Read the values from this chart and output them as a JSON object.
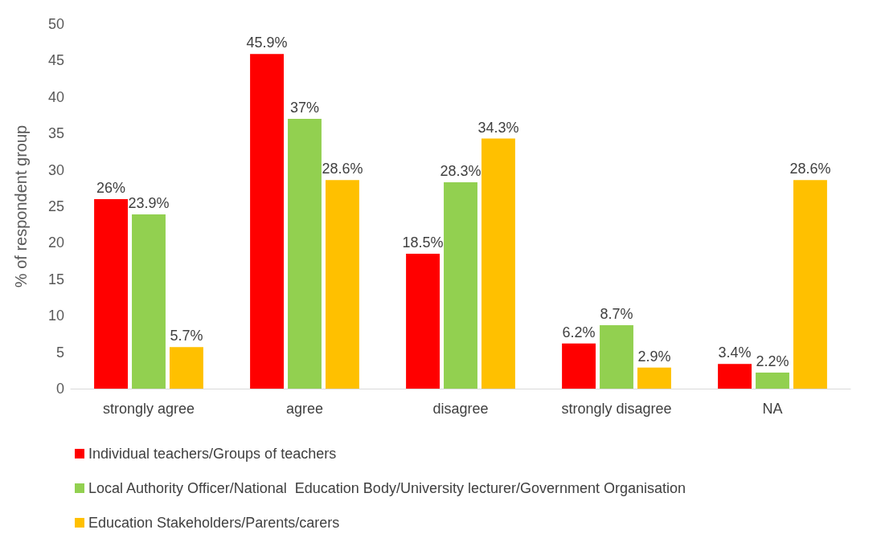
{
  "chart_data": {
    "type": "bar",
    "ylabel": "% of respondent group",
    "categories": [
      "strongly agree",
      "agree",
      "disagree",
      "strongly disagree",
      "NA"
    ],
    "series": [
      {
        "name": "Individual teachers/Groups of teachers",
        "color": "#ff0000",
        "values": [
          26,
          45.9,
          18.5,
          6.2,
          3.4
        ],
        "value_labels": [
          "26%",
          "45.9%",
          "18.5%",
          "6.2%",
          "3.4%"
        ]
      },
      {
        "name": "Local Authority Officer/National  Education Body/University lecturer/Government Organisation",
        "color": "#92d050",
        "values": [
          23.9,
          37,
          28.3,
          8.7,
          2.2
        ],
        "value_labels": [
          "23.9%",
          "37%",
          "28.3%",
          "8.7%",
          "2.2%"
        ]
      },
      {
        "name": "Education Stakeholders/Parents/carers",
        "color": "#ffc000",
        "values": [
          5.7,
          28.6,
          34.3,
          2.9,
          28.6
        ],
        "value_labels": [
          "5.7%",
          "28.6%",
          "34.3%",
          "2.9%",
          "28.6%"
        ]
      }
    ],
    "ylim": [
      0,
      50
    ],
    "yticks": [
      0,
      5,
      10,
      15,
      20,
      25,
      30,
      35,
      40,
      45,
      50
    ],
    "grid": false,
    "legend": "bottom"
  }
}
